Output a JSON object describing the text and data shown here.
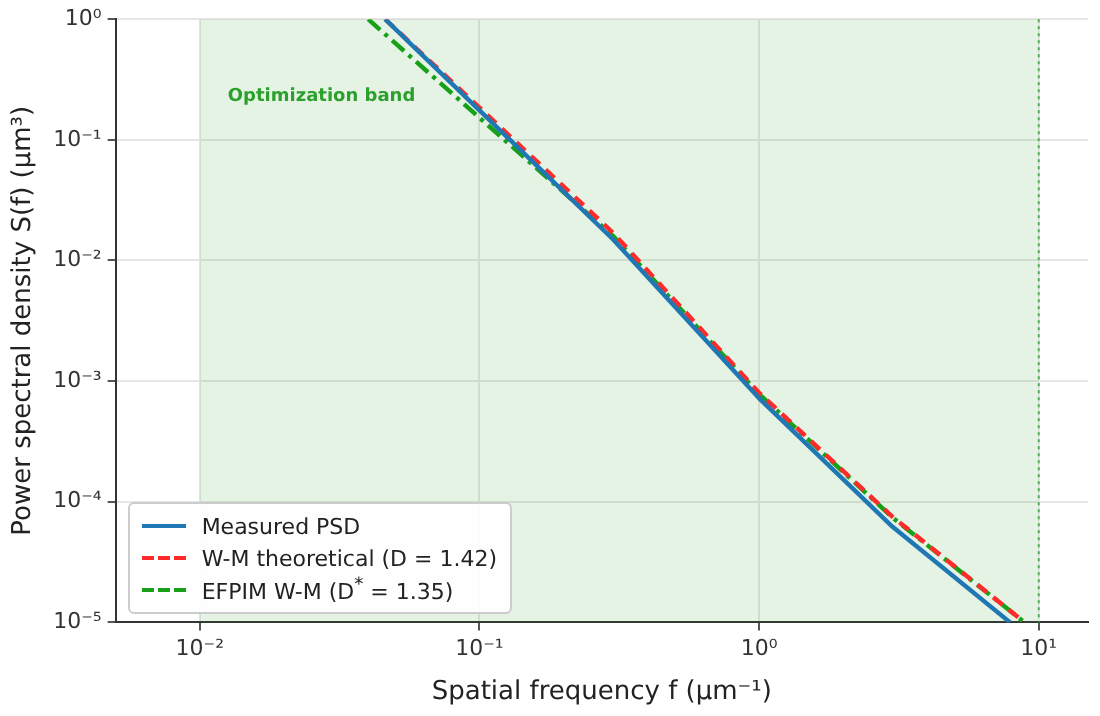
{
  "chart_data": {
    "type": "line",
    "xlabel": "Spatial frequency f (μm⁻¹)",
    "ylabel": "Power spectral density S(f) (μm³)",
    "log": "xy",
    "xlim": [
      0.005,
      15
    ],
    "xticks": [
      {
        "value": 0.01,
        "label": "10⁻²"
      },
      {
        "value": 0.1,
        "label": "10⁻¹"
      },
      {
        "value": 1,
        "label": "10⁰"
      },
      {
        "value": 10,
        "label": "10¹"
      }
    ],
    "ylim": [
      1e-05,
      1
    ],
    "yticks": [
      {
        "value": 1e-05,
        "label": "10⁻⁵"
      },
      {
        "value": 0.0001,
        "label": "10⁻⁴"
      },
      {
        "value": 0.001,
        "label": "10⁻³"
      },
      {
        "value": 0.01,
        "label": "10⁻²"
      },
      {
        "value": 0.1,
        "label": "10⁻¹"
      },
      {
        "value": 1,
        "label": "10⁰"
      }
    ],
    "grid": true,
    "legend": "bottom left",
    "marker": "none",
    "bands": [
      {
        "axis": "x",
        "from": 0.01,
        "to": 10,
        "label": "Optimization band",
        "color": "#2ca02c"
      }
    ],
    "ref_lines": [
      {
        "axis": "x",
        "value": 10,
        "color": "#2ca02c",
        "line_style": "dotted"
      }
    ],
    "series": [
      {
        "name": "Measured PSD",
        "color": "#1f77b4",
        "line_style": "solid",
        "x": [
          0.046,
          0.3,
          1,
          3,
          7.9
        ],
        "values": [
          1,
          0.015,
          0.00072,
          6.2e-05,
          1e-05
        ]
      },
      {
        "name": "W-M theoretical (D = 1.42)",
        "color": "#ff2a2a",
        "line_style": "dashed",
        "x": [
          0.046,
          0.3,
          1,
          3,
          8.9
        ],
        "values": [
          1,
          0.017,
          0.0008,
          7.5e-05,
          1e-05
        ]
      },
      {
        "name": "EFPIM W-M (D$^{*}$ = 1.35)",
        "color": "#19a019",
        "line_style": "dashdot",
        "x": [
          0.04,
          0.3,
          1,
          3,
          8.9
        ],
        "values": [
          1,
          0.016,
          0.00078,
          7.4e-05,
          1e-05
        ]
      }
    ]
  }
}
